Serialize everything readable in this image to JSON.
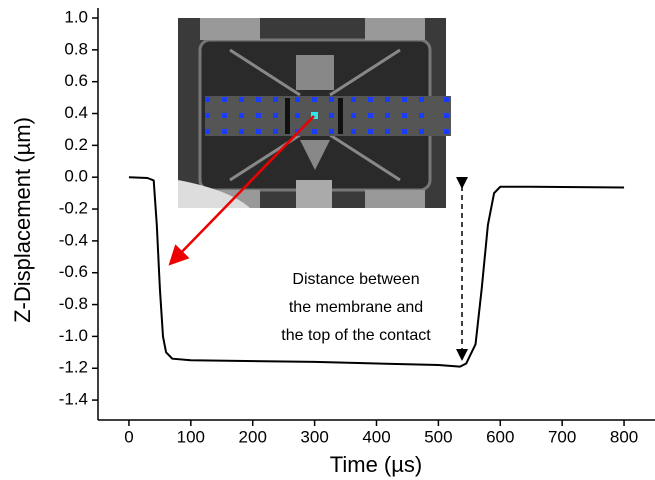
{
  "chart_data": {
    "type": "line",
    "x_label": "Time (µs)",
    "y_label": "Z-Displacement (µm)",
    "x": [
      0,
      30,
      40,
      45,
      50,
      55,
      60,
      70,
      100,
      300,
      500,
      535,
      545,
      560,
      570,
      580,
      590,
      600,
      650,
      800
    ],
    "series": [
      {
        "color": "#000000",
        "values": [
          0.0,
          -0.005,
          -0.02,
          -0.3,
          -0.7,
          -1.0,
          -1.1,
          -1.14,
          -1.15,
          -1.16,
          -1.18,
          -1.19,
          -1.17,
          -1.05,
          -0.7,
          -0.3,
          -0.1,
          -0.06,
          -0.06,
          -0.065
        ]
      }
    ],
    "xlim": [
      -50,
      850
    ],
    "ylim": [
      -1.5,
      1.0
    ],
    "xticks": [
      0,
      100,
      200,
      300,
      400,
      500,
      600,
      700,
      800
    ],
    "yticks": [
      {
        "value": 1.0,
        "label": "1.0"
      },
      0.8,
      0.6,
      0.4,
      0.2,
      {
        "value": 0.0,
        "label": "0.0"
      },
      -0.2,
      -0.4,
      -0.6,
      -0.8,
      {
        "value": -1.0,
        "label": "-1.0"
      },
      -1.2,
      -1.4
    ],
    "annotation": [
      "Distance between",
      "the membrane and",
      "the top of the contact"
    ]
  }
}
